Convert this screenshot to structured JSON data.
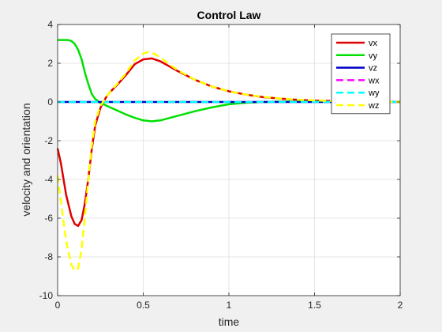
{
  "chart_data": {
    "type": "line",
    "title": "Control Law",
    "xlabel": "time",
    "ylabel": "velocity and orientation",
    "xlim": [
      0,
      2
    ],
    "ylim": [
      -10,
      4
    ],
    "xticks": [
      0,
      0.5,
      1,
      1.5,
      2
    ],
    "xtick_labels": [
      "0",
      "0.5",
      "1",
      "1.5",
      "2"
    ],
    "yticks": [
      -10,
      -8,
      -6,
      -4,
      -2,
      0,
      2,
      4
    ],
    "ytick_labels": [
      "-10",
      "-8",
      "-6",
      "-4",
      "-2",
      "0",
      "2",
      "4"
    ],
    "grid": true,
    "legend_position": "top-right",
    "series": [
      {
        "name": "vx",
        "color": "#e00000",
        "dash": "solid",
        "x": [
          0,
          0.02,
          0.05,
          0.08,
          0.1,
          0.12,
          0.14,
          0.16,
          0.18,
          0.2,
          0.22,
          0.25,
          0.28,
          0.3,
          0.35,
          0.4,
          0.45,
          0.5,
          0.55,
          0.6,
          0.65,
          0.7,
          0.8,
          0.9,
          1.0,
          1.1,
          1.2,
          1.3,
          1.4,
          1.5,
          1.6,
          1.7,
          1.8,
          1.9,
          2.0
        ],
        "y": [
          -2.4,
          -3.2,
          -4.8,
          -5.9,
          -6.3,
          -6.4,
          -6.1,
          -5.2,
          -3.9,
          -2.4,
          -1.2,
          -0.3,
          0.2,
          0.45,
          0.9,
          1.4,
          1.95,
          2.2,
          2.25,
          2.1,
          1.85,
          1.6,
          1.15,
          0.8,
          0.55,
          0.38,
          0.25,
          0.17,
          0.11,
          0.07,
          0.05,
          0.03,
          0.02,
          0.01,
          0.0
        ]
      },
      {
        "name": "vy",
        "color": "#00e000",
        "dash": "solid",
        "x": [
          0,
          0.03,
          0.06,
          0.08,
          0.1,
          0.12,
          0.14,
          0.16,
          0.18,
          0.2,
          0.22,
          0.25,
          0.3,
          0.35,
          0.4,
          0.45,
          0.5,
          0.55,
          0.6,
          0.7,
          0.8,
          0.9,
          1.0,
          1.1,
          1.2,
          1.3,
          1.4,
          1.5,
          1.6,
          1.8,
          2.0
        ],
        "y": [
          3.2,
          3.2,
          3.2,
          3.15,
          3.0,
          2.7,
          2.2,
          1.5,
          0.9,
          0.4,
          0.15,
          -0.05,
          -0.25,
          -0.45,
          -0.65,
          -0.82,
          -0.95,
          -1.0,
          -0.95,
          -0.72,
          -0.48,
          -0.28,
          -0.12,
          -0.04,
          0.0,
          0.02,
          0.02,
          0.02,
          0.01,
          0.0,
          0.0
        ]
      },
      {
        "name": "vz",
        "color": "#0000c8",
        "dash": "solid",
        "x": [
          0,
          2
        ],
        "y": [
          0,
          0
        ]
      },
      {
        "name": "wx",
        "color": "#ff00ff",
        "dash": "dashed",
        "x": [
          0,
          2
        ],
        "y": [
          0,
          0
        ]
      },
      {
        "name": "wy",
        "color": "#00ffff",
        "dash": "dashed",
        "x": [
          0,
          2
        ],
        "y": [
          0,
          0
        ]
      },
      {
        "name": "wz",
        "color": "#ffff00",
        "dash": "dashed",
        "x": [
          0,
          0.02,
          0.05,
          0.08,
          0.1,
          0.12,
          0.14,
          0.16,
          0.18,
          0.2,
          0.22,
          0.25,
          0.28,
          0.3,
          0.35,
          0.4,
          0.45,
          0.5,
          0.53,
          0.55,
          0.6,
          0.65,
          0.7,
          0.8,
          0.9,
          1.0,
          1.1,
          1.2,
          1.3,
          1.4,
          1.5,
          1.6,
          1.7,
          1.8,
          1.9,
          2.0
        ],
        "y": [
          -3.8,
          -5.2,
          -7.2,
          -8.4,
          -8.7,
          -8.6,
          -7.6,
          -5.9,
          -3.9,
          -2.2,
          -1.0,
          -0.2,
          0.2,
          0.45,
          0.95,
          1.5,
          2.15,
          2.5,
          2.58,
          2.55,
          2.3,
          1.95,
          1.65,
          1.15,
          0.8,
          0.55,
          0.38,
          0.26,
          0.18,
          0.12,
          0.08,
          0.05,
          0.03,
          0.02,
          0.01,
          0.0
        ]
      }
    ]
  }
}
